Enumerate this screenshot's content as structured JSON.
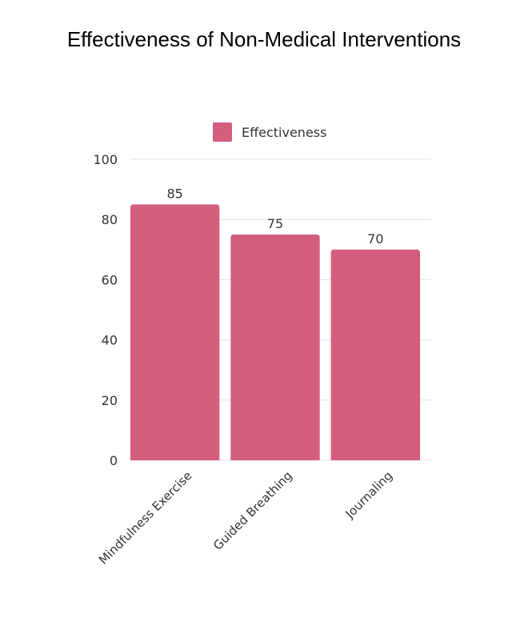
{
  "title": "Effectiveness of Non-Medical Interventions",
  "colors": {
    "bar": "#d45e7e",
    "grid": "#e3e3e3",
    "text": "#333333"
  },
  "chart_data": {
    "type": "bar",
    "title": "Effectiveness of Non-Medical Interventions",
    "categories": [
      "Mindfulness Exercise",
      "Guided Breathing",
      "Journaling"
    ],
    "series": [
      {
        "name": "Effectiveness",
        "values": [
          85,
          75,
          70
        ]
      }
    ],
    "xlabel": "",
    "ylabel": "",
    "ylim": [
      0,
      100
    ],
    "yticks": [
      0,
      20,
      40,
      60,
      80,
      100
    ],
    "grid": true,
    "legend": "top-center",
    "data_labels": true
  }
}
